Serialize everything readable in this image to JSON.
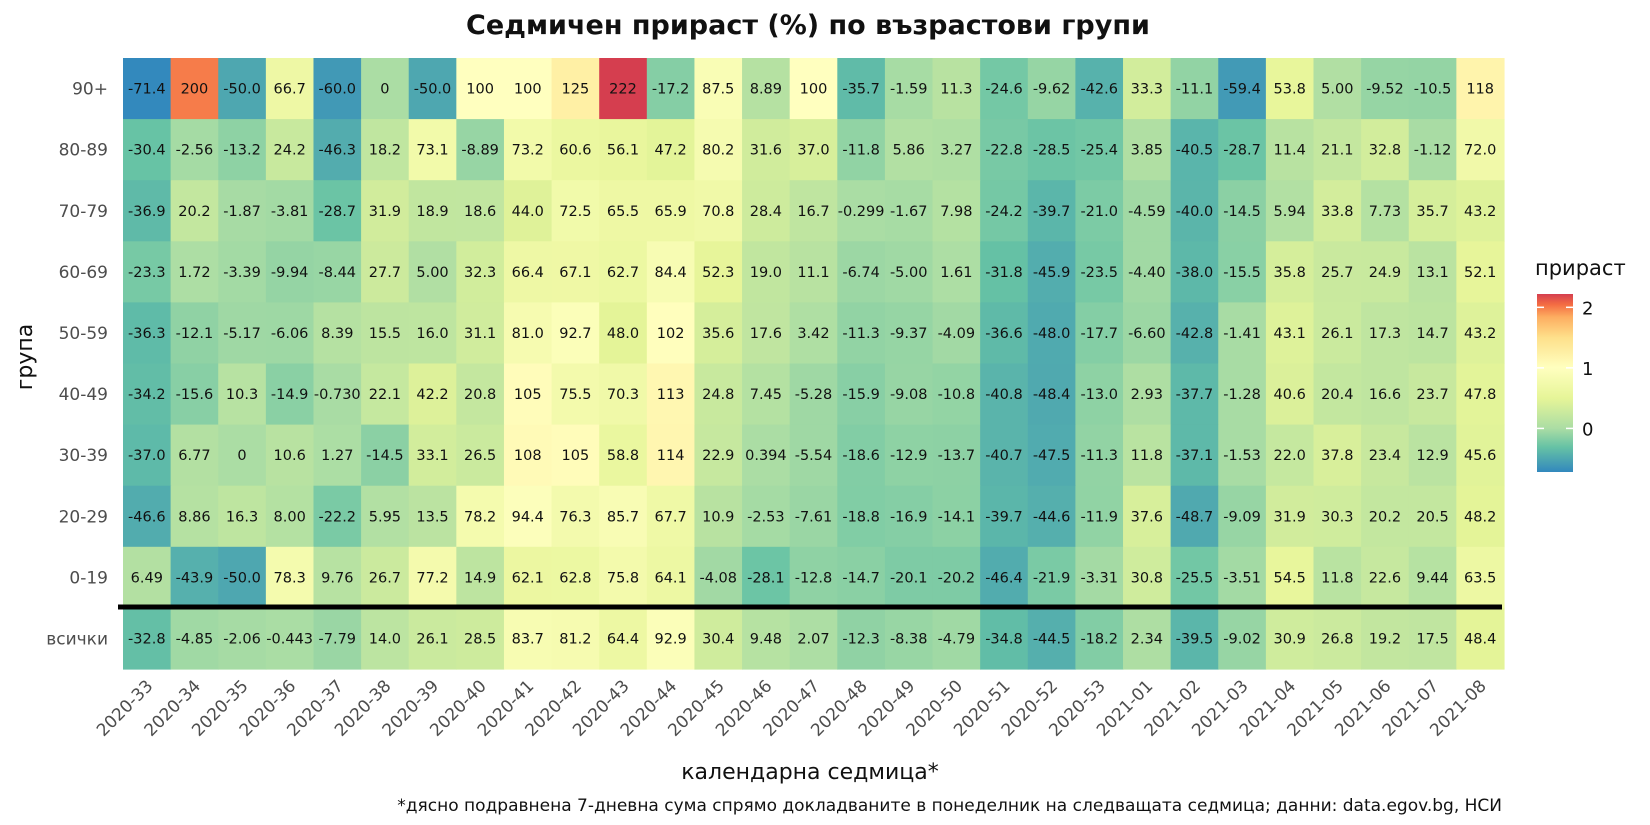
{
  "chart_data": {
    "type": "heatmap",
    "title": "Седмичен прираст (%) по възрастови групи",
    "xlabel": "календарна седмица*",
    "ylabel": "група",
    "caption": "*дясно подравнена 7-дневна сума спрямо докладваните в понеделник на следващата седмица; данни: data.egov.bg, НСИ",
    "legend": {
      "title": "прираст",
      "position": "right",
      "ticks": [
        "2",
        "1",
        "0"
      ],
      "tick_values": [
        2,
        1,
        0
      ],
      "range": [
        -0.72,
        2.22
      ]
    },
    "colors": {
      "low": "#3288bd",
      "mid": "#ffffbf",
      "high": "#d53e4f",
      "separator": "#000000"
    },
    "x": [
      "2020-33",
      "2020-34",
      "2020-35",
      "2020-36",
      "2020-37",
      "2020-38",
      "2020-39",
      "2020-40",
      "2020-41",
      "2020-42",
      "2020-43",
      "2020-44",
      "2020-45",
      "2020-46",
      "2020-47",
      "2020-48",
      "2020-49",
      "2020-50",
      "2020-51",
      "2020-52",
      "2020-53",
      "2021-01",
      "2021-02",
      "2021-03",
      "2021-04",
      "2021-05",
      "2021-06",
      "2021-07",
      "2021-08"
    ],
    "rows": [
      {
        "group": "90+",
        "labels": [
          "-71.4",
          "200",
          "-50.0",
          "66.7",
          "-60.0",
          "0",
          "-50.0",
          "100",
          "100",
          "125",
          "222",
          "-17.2",
          "87.5",
          "8.89",
          "100",
          "-35.7",
          "-1.59",
          "11.3",
          "-24.6",
          "-9.62",
          "-42.6",
          "33.3",
          "-11.1",
          "-59.4",
          "53.8",
          "5.00",
          "-9.52",
          "-10.5",
          "118"
        ]
      },
      {
        "group": "80-89",
        "labels": [
          "-30.4",
          "-2.56",
          "-13.2",
          "24.2",
          "-46.3",
          "18.2",
          "73.1",
          "-8.89",
          "73.2",
          "60.6",
          "56.1",
          "47.2",
          "80.2",
          "31.6",
          "37.0",
          "-11.8",
          "5.86",
          "3.27",
          "-22.8",
          "-28.5",
          "-25.4",
          "3.85",
          "-40.5",
          "-28.7",
          "11.4",
          "21.1",
          "32.8",
          "-1.12",
          "72.0"
        ]
      },
      {
        "group": "70-79",
        "labels": [
          "-36.9",
          "20.2",
          "-1.87",
          "-3.81",
          "-28.7",
          "31.9",
          "18.9",
          "18.6",
          "44.0",
          "72.5",
          "65.5",
          "65.9",
          "70.8",
          "28.4",
          "16.7",
          "-0.299",
          "-1.67",
          "7.98",
          "-24.2",
          "-39.7",
          "-21.0",
          "-4.59",
          "-40.0",
          "-14.5",
          "5.94",
          "33.8",
          "7.73",
          "35.7",
          "43.2"
        ]
      },
      {
        "group": "60-69",
        "labels": [
          "-23.3",
          "1.72",
          "-3.39",
          "-9.94",
          "-8.44",
          "27.7",
          "5.00",
          "32.3",
          "66.4",
          "67.1",
          "62.7",
          "84.4",
          "52.3",
          "19.0",
          "11.1",
          "-6.74",
          "-5.00",
          "1.61",
          "-31.8",
          "-45.9",
          "-23.5",
          "-4.40",
          "-38.0",
          "-15.5",
          "35.8",
          "25.7",
          "24.9",
          "13.1",
          "52.1"
        ]
      },
      {
        "group": "50-59",
        "labels": [
          "-36.3",
          "-12.1",
          "-5.17",
          "-6.06",
          "8.39",
          "15.5",
          "16.0",
          "31.1",
          "81.0",
          "92.7",
          "48.0",
          "102",
          "35.6",
          "17.6",
          "3.42",
          "-11.3",
          "-9.37",
          "-4.09",
          "-36.6",
          "-48.0",
          "-17.7",
          "-6.60",
          "-42.8",
          "-1.41",
          "43.1",
          "26.1",
          "17.3",
          "14.7",
          "43.2"
        ]
      },
      {
        "group": "40-49",
        "labels": [
          "-34.2",
          "-15.6",
          "10.3",
          "-14.9",
          "-0.730",
          "22.1",
          "42.2",
          "20.8",
          "105",
          "75.5",
          "70.3",
          "113",
          "24.8",
          "7.45",
          "-5.28",
          "-15.9",
          "-9.08",
          "-10.8",
          "-40.8",
          "-48.4",
          "-13.0",
          "2.93",
          "-37.7",
          "-1.28",
          "40.6",
          "20.4",
          "16.6",
          "23.7",
          "47.8"
        ]
      },
      {
        "group": "30-39",
        "labels": [
          "-37.0",
          "6.77",
          "0",
          "10.6",
          "1.27",
          "-14.5",
          "33.1",
          "26.5",
          "108",
          "105",
          "58.8",
          "114",
          "22.9",
          "0.394",
          "-5.54",
          "-18.6",
          "-12.9",
          "-13.7",
          "-40.7",
          "-47.5",
          "-11.3",
          "11.8",
          "-37.1",
          "-1.53",
          "22.0",
          "37.8",
          "23.4",
          "12.9",
          "45.6"
        ]
      },
      {
        "group": "20-29",
        "labels": [
          "-46.6",
          "8.86",
          "16.3",
          "8.00",
          "-22.2",
          "5.95",
          "13.5",
          "78.2",
          "94.4",
          "76.3",
          "85.7",
          "67.7",
          "10.9",
          "-2.53",
          "-7.61",
          "-18.8",
          "-16.9",
          "-14.1",
          "-39.7",
          "-44.6",
          "-11.9",
          "37.6",
          "-48.7",
          "-9.09",
          "31.9",
          "30.3",
          "20.2",
          "20.5",
          "48.2"
        ]
      },
      {
        "group": "0-19",
        "labels": [
          "6.49",
          "-43.9",
          "-50.0",
          "78.3",
          "9.76",
          "26.7",
          "77.2",
          "14.9",
          "62.1",
          "62.8",
          "75.8",
          "64.1",
          "-4.08",
          "-28.1",
          "-12.8",
          "-14.7",
          "-20.1",
          "-20.2",
          "-46.4",
          "-21.9",
          "-3.31",
          "30.8",
          "-25.5",
          "-3.51",
          "54.5",
          "11.8",
          "22.6",
          "9.44",
          "63.5"
        ]
      },
      {
        "group": "всички",
        "labels": [
          "-32.8",
          "-4.85",
          "-2.06",
          "-0.443",
          "-7.79",
          "14.0",
          "26.1",
          "28.5",
          "83.7",
          "81.2",
          "64.4",
          "92.9",
          "30.4",
          "9.48",
          "2.07",
          "-12.3",
          "-8.38",
          "-4.79",
          "-34.8",
          "-44.5",
          "-18.2",
          "2.34",
          "-39.5",
          "-9.02",
          "30.9",
          "26.8",
          "19.2",
          "17.5",
          "48.4"
        ]
      }
    ]
  }
}
